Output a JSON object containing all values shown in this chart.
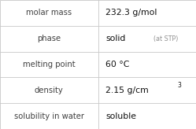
{
  "rows": [
    {
      "label": "molar mass",
      "value": "232.3 g/mol",
      "value_suffix": null,
      "value_sup": null
    },
    {
      "label": "phase",
      "value": "solid",
      "value_suffix": "  (at STP)",
      "value_sup": null
    },
    {
      "label": "melting point",
      "value": "60 °C",
      "value_suffix": null,
      "value_sup": null
    },
    {
      "label": "density",
      "value": "2.15 g/cm",
      "value_suffix": null,
      "value_sup": "3"
    },
    {
      "label": "solubility in water",
      "value": "soluble",
      "value_suffix": null,
      "value_sup": null
    }
  ],
  "bg_color": "#ffffff",
  "border_color": "#c8c8c8",
  "label_color": "#404040",
  "value_color": "#101010",
  "suffix_color": "#909090",
  "label_fontsize": 7.2,
  "value_fontsize": 7.8,
  "suffix_fontsize": 5.8,
  "sup_fontsize": 5.5,
  "col_split": 0.5
}
